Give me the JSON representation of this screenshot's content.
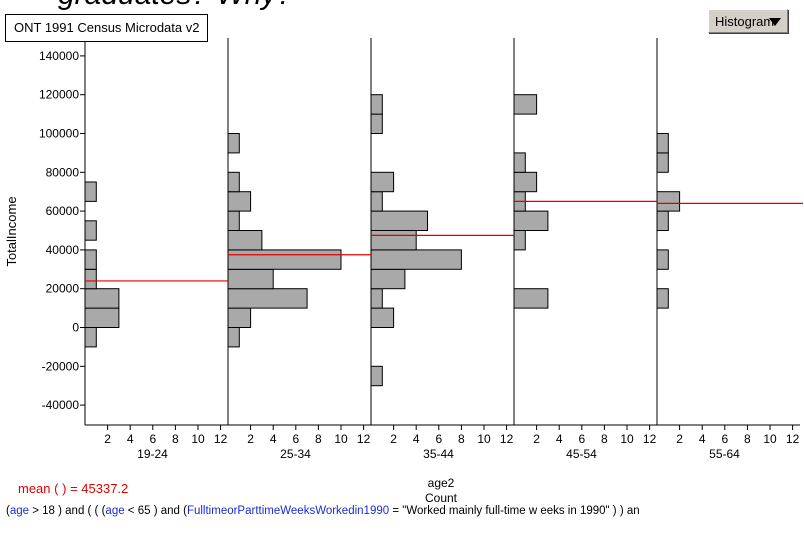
{
  "top_title": "graduates?  Why?",
  "dataset_name": "ONT 1991 Census Microdata v2",
  "plot_type_button": "Histogram",
  "colors": {
    "bar": "#a9a9a9",
    "mean_line": "#e00000",
    "attr_text": "#1a2bd6"
  },
  "chart_data": {
    "type": "bar",
    "orientation": "horizontal-histograms",
    "ylabel": "TotalIncome",
    "xlabel": "age2",
    "x_sublabel": "Count",
    "ylim": [
      -50000,
      150000
    ],
    "yticks": [
      140000,
      120000,
      100000,
      80000,
      60000,
      40000,
      20000,
      0,
      -20000,
      -40000
    ],
    "count_ticks": [
      "2",
      "4",
      "6",
      "8",
      "10",
      "12"
    ],
    "bin_width": 10000,
    "count_range": [
      0,
      12
    ],
    "panels": [
      {
        "label": "19-24",
        "mean": 24000,
        "bins": [
          {
            "y": -5000,
            "count": 1
          },
          {
            "y": 5000,
            "count": 3
          },
          {
            "y": 15000,
            "count": 3
          },
          {
            "y": 25000,
            "count": 1
          },
          {
            "y": 35000,
            "count": 1
          },
          {
            "y": 50000,
            "count": 1
          },
          {
            "y": 70000,
            "count": 1
          }
        ]
      },
      {
        "label": "25-34",
        "mean": 37500,
        "bins": [
          {
            "y": -5000,
            "count": 1
          },
          {
            "y": 5000,
            "count": 2
          },
          {
            "y": 15000,
            "count": 7
          },
          {
            "y": 25000,
            "count": 4
          },
          {
            "y": 35000,
            "count": 10
          },
          {
            "y": 45000,
            "count": 3
          },
          {
            "y": 55000,
            "count": 1
          },
          {
            "y": 65000,
            "count": 2
          },
          {
            "y": 75000,
            "count": 1
          },
          {
            "y": 95000,
            "count": 1
          }
        ]
      },
      {
        "label": "35-44",
        "mean": 47500,
        "bins": [
          {
            "y": -25000,
            "count": 1
          },
          {
            "y": 5000,
            "count": 2
          },
          {
            "y": 15000,
            "count": 1
          },
          {
            "y": 25000,
            "count": 3
          },
          {
            "y": 35000,
            "count": 8
          },
          {
            "y": 45000,
            "count": 4
          },
          {
            "y": 55000,
            "count": 5
          },
          {
            "y": 65000,
            "count": 1
          },
          {
            "y": 75000,
            "count": 2
          },
          {
            "y": 105000,
            "count": 1
          },
          {
            "y": 115000,
            "count": 1
          }
        ]
      },
      {
        "label": "45-54",
        "mean": 65000,
        "bins": [
          {
            "y": 15000,
            "count": 3
          },
          {
            "y": 45000,
            "count": 1
          },
          {
            "y": 55000,
            "count": 3
          },
          {
            "y": 65000,
            "count": 1
          },
          {
            "y": 75000,
            "count": 2
          },
          {
            "y": 85000,
            "count": 1
          },
          {
            "y": 115000,
            "count": 2
          }
        ]
      },
      {
        "label": "55-64",
        "mean": 64000,
        "bins": [
          {
            "y": 15000,
            "count": 1
          },
          {
            "y": 35000,
            "count": 1
          },
          {
            "y": 55000,
            "count": 1
          },
          {
            "y": 65000,
            "count": 2
          },
          {
            "y": 85000,
            "count": 1
          },
          {
            "y": 95000,
            "count": 1
          }
        ]
      }
    ]
  },
  "summary": {
    "function": "mean",
    "args": "(  )",
    "equals": "=",
    "value": "45337.2"
  },
  "filter": {
    "p1": "(",
    "attr_age1": "age",
    "p2": " > 18 )  and  ( ( (",
    "attr_age2": "age",
    "p3": " < 65 )  and  (",
    "attr_full": "FulltimeorParttimeWeeksWorkedin1990",
    "p4": " = \"Worked mainly full-time w eeks in 1990\" ) )  an"
  }
}
